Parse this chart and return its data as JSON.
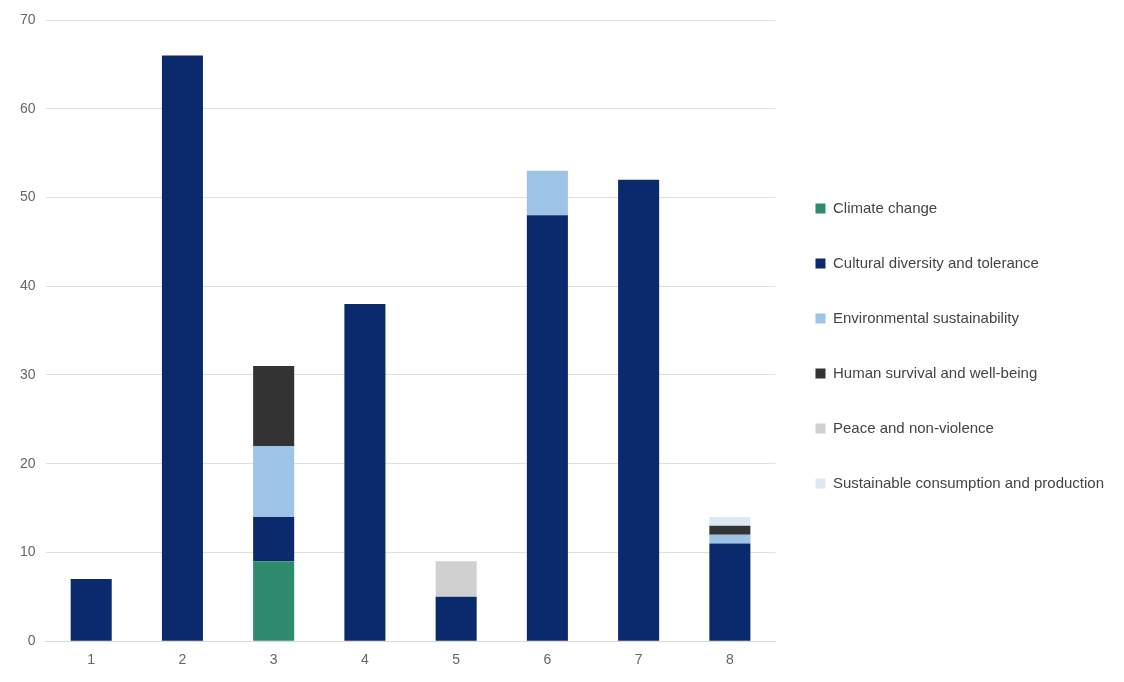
{
  "chart_data": {
    "type": "bar",
    "stacked": true,
    "categories": [
      "1",
      "2",
      "3",
      "4",
      "5",
      "6",
      "7",
      "8"
    ],
    "series": [
      {
        "name": "Climate change",
        "color": "#2e8b6e",
        "values": [
          null,
          null,
          9,
          null,
          null,
          null,
          null,
          null
        ]
      },
      {
        "name": "Cultural diversity and tolerance",
        "color": "#0b2a6e",
        "values": [
          7,
          66,
          5,
          38,
          5,
          48,
          52,
          11
        ]
      },
      {
        "name": "Environmental sustainability",
        "color": "#9dc3e6",
        "values": [
          null,
          null,
          8,
          null,
          null,
          5,
          null,
          1
        ]
      },
      {
        "name": "Human survival and well-being",
        "color": "#333333",
        "values": [
          null,
          null,
          9,
          null,
          null,
          null,
          null,
          1
        ]
      },
      {
        "name": "Peace and non-violence",
        "color": "#d0d0d0",
        "values": [
          null,
          null,
          null,
          null,
          4,
          null,
          null,
          null
        ]
      },
      {
        "name": "Sustainable consumption and production",
        "color": "#dde8f5",
        "values": [
          null,
          null,
          null,
          null,
          null,
          null,
          null,
          1
        ]
      }
    ],
    "ylim": [
      0,
      70
    ],
    "yticks": [
      0,
      10,
      20,
      30,
      40,
      50,
      60,
      70
    ],
    "grid": "y",
    "legend": "right"
  }
}
